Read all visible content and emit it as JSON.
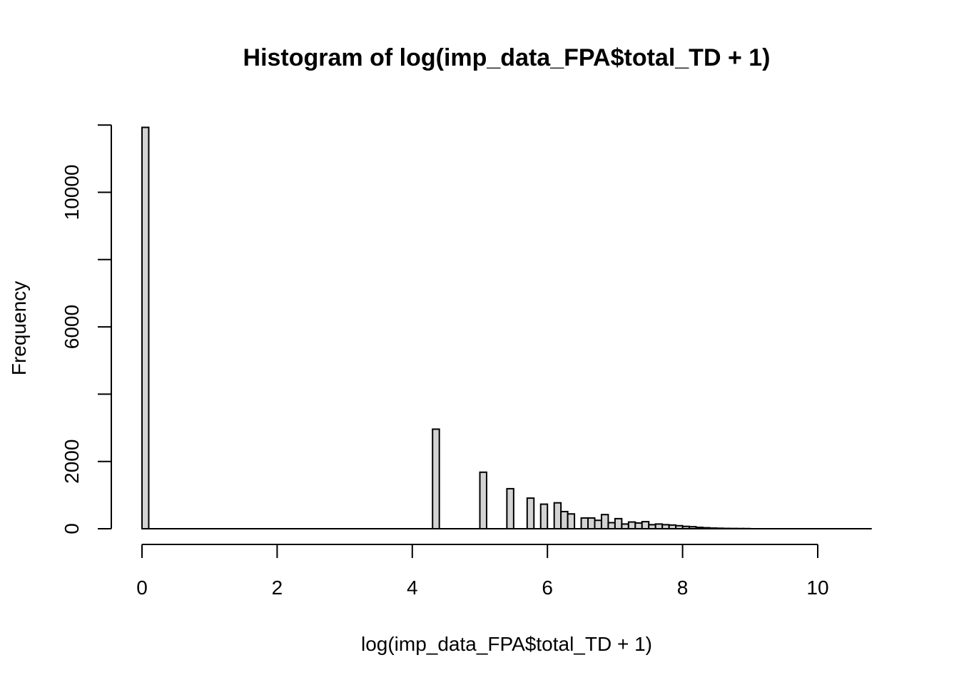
{
  "chart_data": {
    "type": "bar",
    "title": "Histogram of log(imp_data_FPA$total_TD + 1)",
    "xlabel": "log(imp_data_FPA$total_TD + 1)",
    "ylabel": "Frequency",
    "xlim": [
      0,
      10.8
    ],
    "ylim": [
      0,
      12000
    ],
    "x_ticks": [
      0,
      2,
      4,
      6,
      8,
      10
    ],
    "y_ticks": [
      0,
      2000,
      4000,
      6000,
      8000,
      10000,
      12000
    ],
    "y_tick_labels": [
      "0",
      "2000",
      "",
      "6000",
      "",
      "10000",
      ""
    ],
    "bin_width": 0.1,
    "bins": [
      {
        "x0": 0.0,
        "count": 11930
      },
      {
        "x0": 4.3,
        "count": 2960
      },
      {
        "x0": 5.0,
        "count": 1680
      },
      {
        "x0": 5.4,
        "count": 1190
      },
      {
        "x0": 5.7,
        "count": 910
      },
      {
        "x0": 5.9,
        "count": 730
      },
      {
        "x0": 6.1,
        "count": 770
      },
      {
        "x0": 6.2,
        "count": 510
      },
      {
        "x0": 6.3,
        "count": 440
      },
      {
        "x0": 6.5,
        "count": 320
      },
      {
        "x0": 6.6,
        "count": 320
      },
      {
        "x0": 6.7,
        "count": 250
      },
      {
        "x0": 6.8,
        "count": 420
      },
      {
        "x0": 6.9,
        "count": 180
      },
      {
        "x0": 7.0,
        "count": 300
      },
      {
        "x0": 7.1,
        "count": 140
      },
      {
        "x0": 7.2,
        "count": 200
      },
      {
        "x0": 7.3,
        "count": 170
      },
      {
        "x0": 7.4,
        "count": 210
      },
      {
        "x0": 7.5,
        "count": 120
      },
      {
        "x0": 7.6,
        "count": 140
      },
      {
        "x0": 7.7,
        "count": 120
      },
      {
        "x0": 7.8,
        "count": 110
      },
      {
        "x0": 7.9,
        "count": 90
      },
      {
        "x0": 8.0,
        "count": 70
      },
      {
        "x0": 8.1,
        "count": 60
      },
      {
        "x0": 8.2,
        "count": 40
      },
      {
        "x0": 8.3,
        "count": 30
      },
      {
        "x0": 8.4,
        "count": 20
      },
      {
        "x0": 8.5,
        "count": 15
      },
      {
        "x0": 8.6,
        "count": 10
      },
      {
        "x0": 8.7,
        "count": 8
      },
      {
        "x0": 8.8,
        "count": 6
      },
      {
        "x0": 8.9,
        "count": 5
      }
    ]
  }
}
